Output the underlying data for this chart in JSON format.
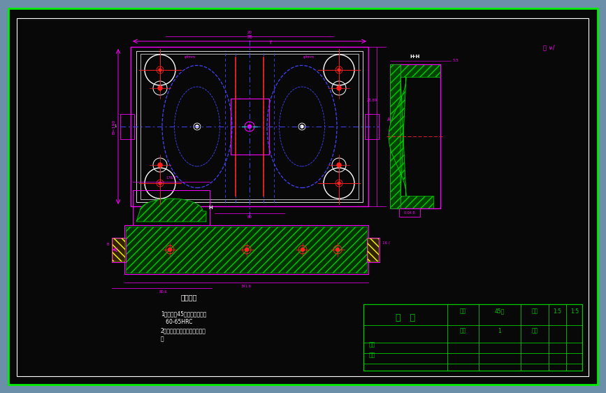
{
  "bg_outer": "#6b8fa8",
  "bg_inner": "#080808",
  "border_green": "#00ee00",
  "magenta": "#ff00ff",
  "cyan": "#00ffff",
  "blue_dark": "#4444ff",
  "red": "#ff2020",
  "white": "#ffffff",
  "green": "#00cc00",
  "yellow": "#ffff00",
  "title_text": "型   芯",
  "material_label": "材料",
  "material_value": "45钉",
  "scale_label": "比例",
  "scale_value": "1:5",
  "qty_label": "数量",
  "qty_value": "1",
  "dwg_label": "图号",
  "draw_label": "制图",
  "approve_label": "审核",
  "tech_title": "技术要求",
  "tech_line1": "1、材料为45钉，热处理硬度",
  "tech_line2": "   60-65HRC",
  "tech_line3": "2、工作部分不能冒口，表面抛",
  "tech_line4": "光"
}
